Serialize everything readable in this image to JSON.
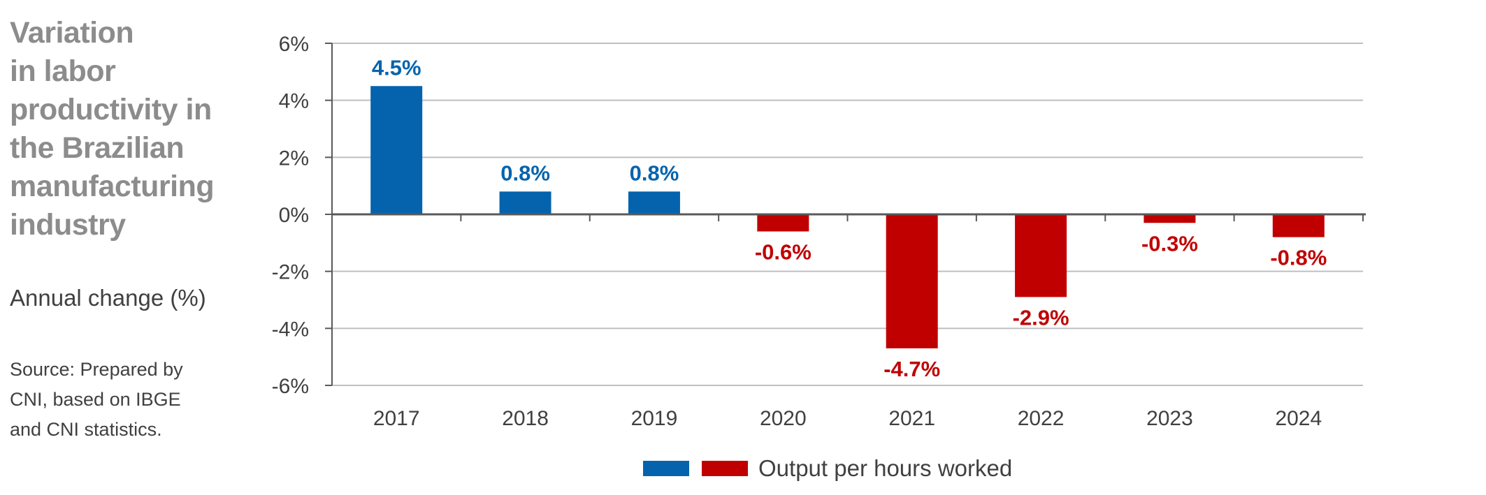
{
  "sidebar": {
    "title": "Variation\nin labor\nproductivity in\nthe Brazilian\nmanufacturing\nindustry",
    "subtitle": "Annual change (%)",
    "source": "Source: Prepared by\nCNI, based on IBGE\nand CNI statistics."
  },
  "colors": {
    "positive": "#0563ad",
    "negative": "#c00000",
    "grid": "#bfbfbf",
    "axis": "#595959"
  },
  "chart_data": {
    "type": "bar",
    "categories": [
      "2017",
      "2018",
      "2019",
      "2020",
      "2021",
      "2022",
      "2023",
      "2024"
    ],
    "series": [
      {
        "name": "Output per hours worked",
        "values": [
          4.5,
          0.8,
          0.8,
          -0.6,
          -4.7,
          -2.9,
          -0.3,
          -0.8
        ]
      }
    ],
    "data_labels": [
      "4.5%",
      "0.8%",
      "0.8%",
      "-0.6%",
      "-4.7%",
      "-2.9%",
      "-0.3%",
      "-0.8%"
    ],
    "ylim": [
      -6,
      6
    ],
    "yticks": [
      6,
      4,
      2,
      0,
      -2,
      -4,
      -6
    ],
    "ytick_labels": [
      "6%",
      "4%",
      "2%",
      "0%",
      "-2%",
      "-4%",
      "-6%"
    ],
    "grid": true,
    "legend_position": "bottom"
  }
}
